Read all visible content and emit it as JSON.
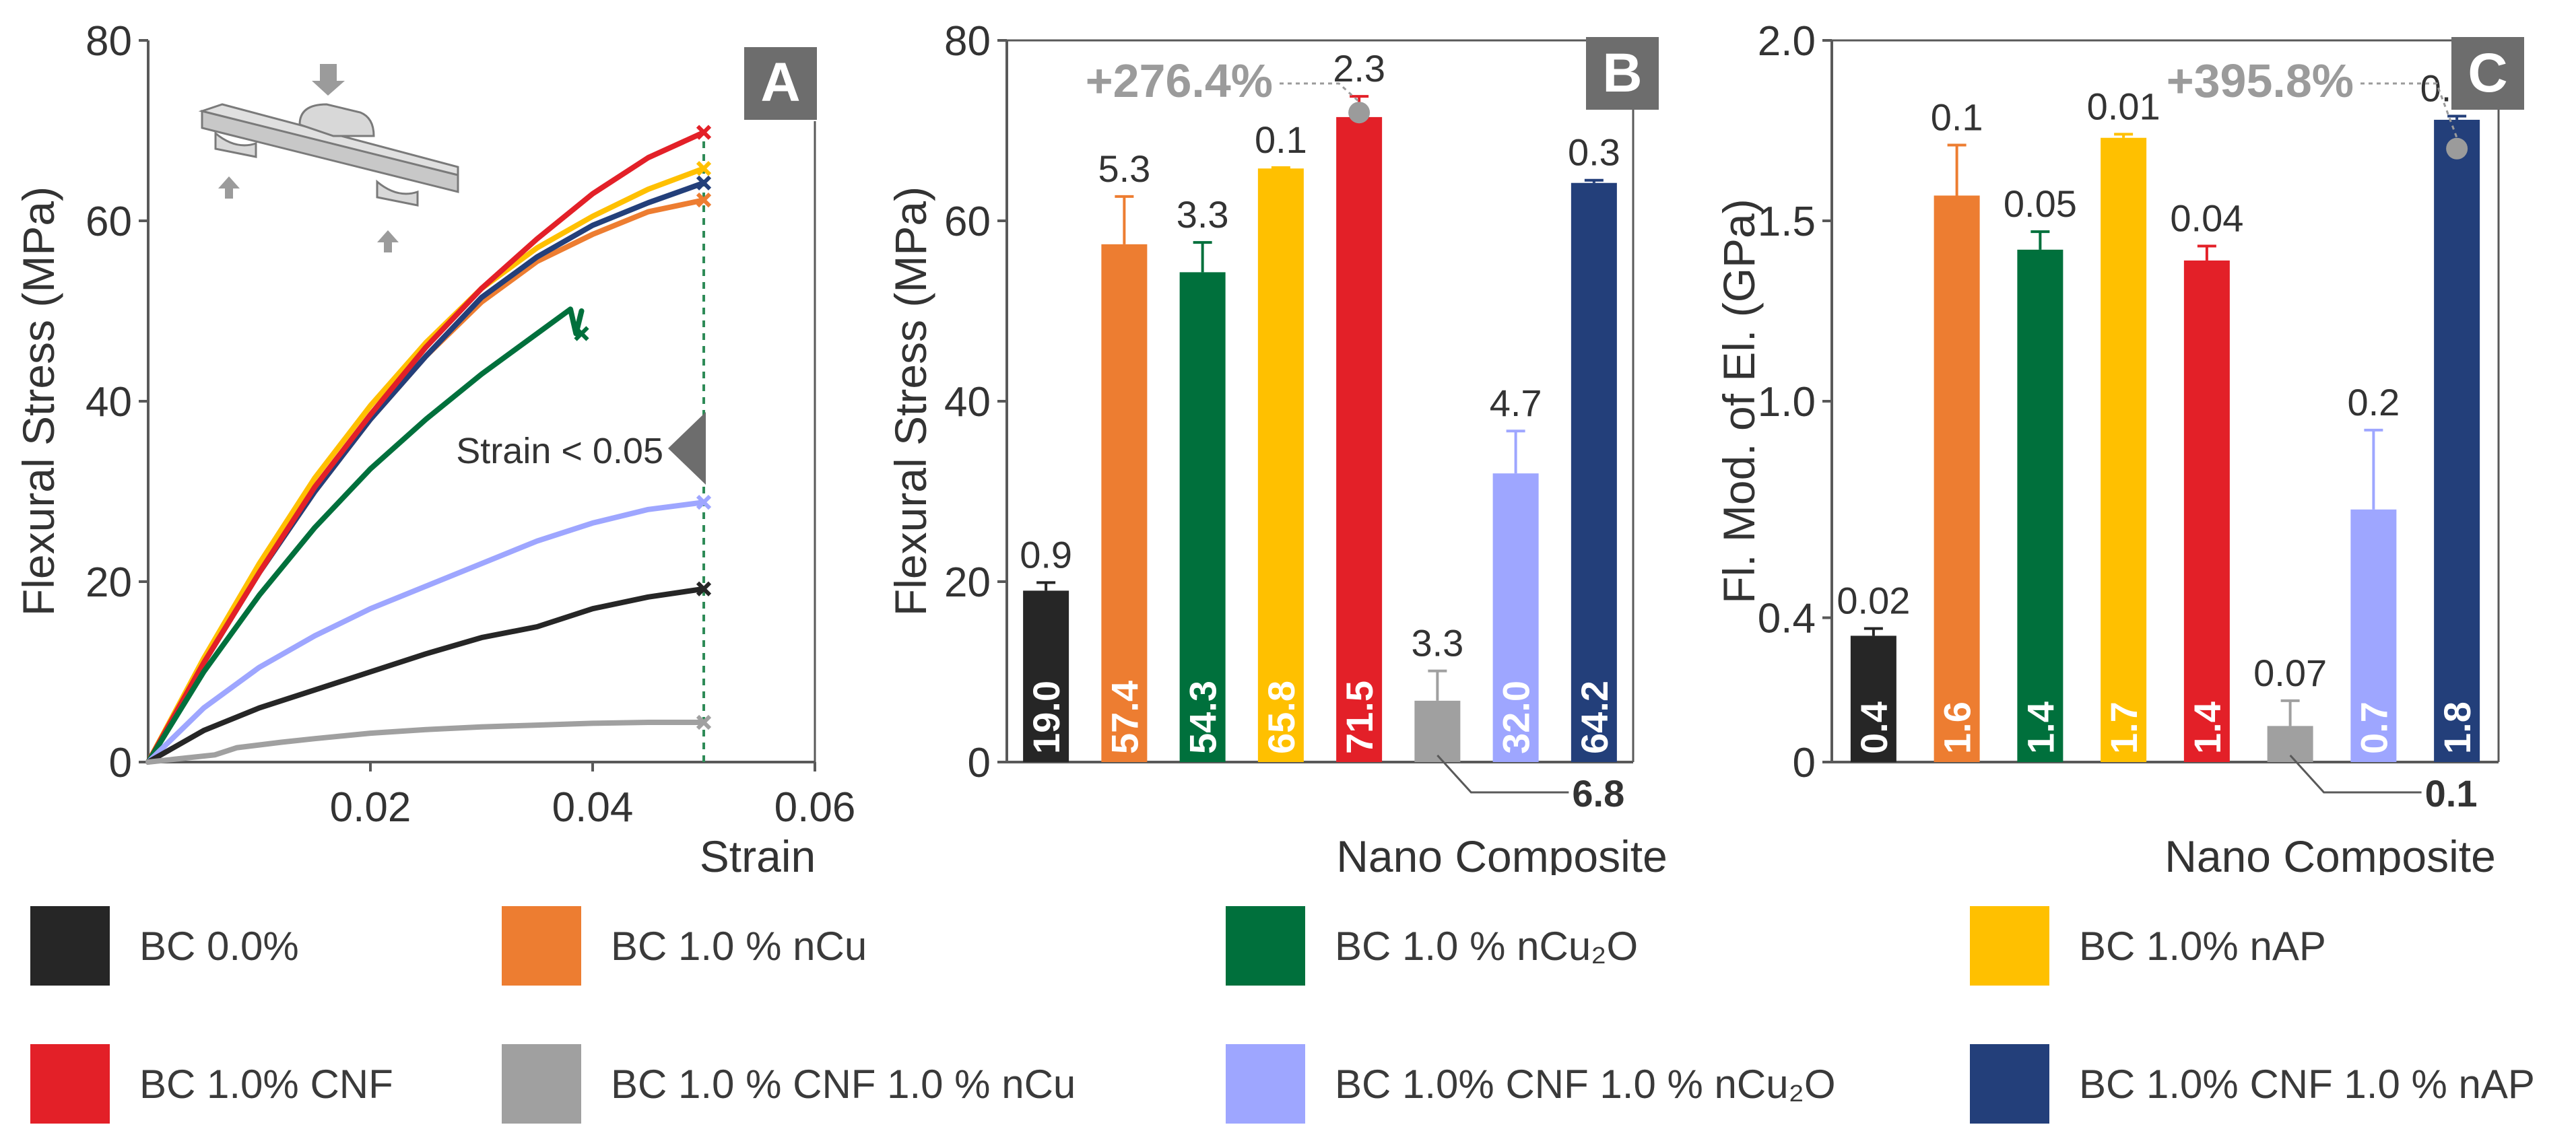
{
  "colors": {
    "BC00": "#262626",
    "nCu": "#ed7d31",
    "nCu2O": "#00703c",
    "nAP": "#ffc000",
    "CNF": "#e32028",
    "CNFnCu": "#a0a0a0",
    "CNFnCu2O": "#9ea6ff",
    "CNFnAP": "#233f7a",
    "axis": "#595959",
    "annot_gray": "#9b9b9b",
    "panel_label_bg": "#6d6d6d",
    "dashed_green": "#2e8b57"
  },
  "legend": [
    {
      "key": "BC00",
      "label": "BC 0.0%"
    },
    {
      "key": "nCu",
      "label": "BC 1.0 % nCu"
    },
    {
      "key": "nCu2O",
      "label": "BC 1.0 % nCu₂O"
    },
    {
      "key": "nAP",
      "label": "BC 1.0% nAP"
    },
    {
      "key": "CNF",
      "label": "BC 1.0% CNF"
    },
    {
      "key": "CNFnCu",
      "label": "BC 1.0 % CNF 1.0 % nCu"
    },
    {
      "key": "CNFnCu2O",
      "label": "BC 1.0% CNF 1.0 % nCu₂O"
    },
    {
      "key": "CNFnAP",
      "label": "BC 1.0% CNF 1.0 % nAP"
    }
  ],
  "chart_data": [
    {
      "type": "line",
      "panel_label": "A",
      "xlabel": "Strain",
      "ylabel": "Flexural Stress (MPa)",
      "xlim": [
        0,
        0.06
      ],
      "ylim": [
        0,
        80
      ],
      "xticks": [
        0.02,
        0.04,
        0.06
      ],
      "xtick_labels": [
        "0.02",
        "0.04",
        "0.06"
      ],
      "yticks": [
        0,
        20,
        40,
        60,
        80
      ],
      "ytick_labels": [
        "0",
        "20",
        "40",
        "60",
        "80"
      ],
      "annotation": "Strain < 0.05",
      "dashed_x": 0.05,
      "series": [
        {
          "key": "nCu",
          "x": [
            0,
            0.005,
            0.01,
            0.015,
            0.02,
            0.025,
            0.03,
            0.035,
            0.04,
            0.045,
            0.05
          ],
          "y": [
            0,
            11,
            21,
            30,
            38,
            45,
            51,
            55.5,
            58.5,
            61,
            62.3
          ],
          "end": "x"
        },
        {
          "key": "CNFnAP",
          "x": [
            0,
            0.005,
            0.01,
            0.015,
            0.02,
            0.025,
            0.03,
            0.035,
            0.04,
            0.045,
            0.05
          ],
          "y": [
            0,
            11,
            21,
            30,
            38,
            45,
            51.5,
            56,
            59.5,
            62,
            64.2
          ],
          "end": "x"
        },
        {
          "key": "nAP",
          "x": [
            0,
            0.005,
            0.01,
            0.015,
            0.02,
            0.025,
            0.03,
            0.035,
            0.04,
            0.045,
            0.05
          ],
          "y": [
            0,
            11.5,
            22,
            31.5,
            39.5,
            46.5,
            52.5,
            57,
            60.5,
            63.5,
            65.8
          ],
          "end": "x"
        },
        {
          "key": "CNF",
          "x": [
            0,
            0.005,
            0.01,
            0.015,
            0.02,
            0.025,
            0.03,
            0.035,
            0.04,
            0.045,
            0.05
          ],
          "y": [
            0,
            11,
            21,
            30.5,
            38.5,
            46,
            52.5,
            58,
            63,
            67,
            69.8
          ],
          "end": "x"
        },
        {
          "key": "nCu2O",
          "x": [
            0,
            0.005,
            0.01,
            0.015,
            0.02,
            0.025,
            0.03,
            0.035,
            0.038,
            0.0385,
            0.039
          ],
          "y": [
            0,
            10,
            18.5,
            26,
            32.5,
            38,
            43,
            47.5,
            50.2,
            47.5,
            50
          ],
          "end": "x",
          "end_x": 0.039,
          "end_y": 47.5
        },
        {
          "key": "CNFnCu2O",
          "x": [
            0,
            0.005,
            0.01,
            0.015,
            0.02,
            0.025,
            0.03,
            0.035,
            0.04,
            0.045,
            0.05
          ],
          "y": [
            0,
            6,
            10.5,
            14,
            17,
            19.5,
            22,
            24.5,
            26.5,
            28,
            28.8
          ],
          "end": "x"
        },
        {
          "key": "BC00",
          "x": [
            0,
            0.005,
            0.01,
            0.015,
            0.02,
            0.025,
            0.03,
            0.035,
            0.04,
            0.045,
            0.05
          ],
          "y": [
            0,
            3.5,
            6,
            8,
            10,
            12,
            13.8,
            15,
            17,
            18.3,
            19.2
          ],
          "end": "x"
        },
        {
          "key": "CNFnCu",
          "x": [
            0,
            0.006,
            0.008,
            0.012,
            0.015,
            0.02,
            0.025,
            0.03,
            0.035,
            0.04,
            0.045,
            0.05
          ],
          "y": [
            0,
            0.8,
            1.6,
            2.2,
            2.6,
            3.2,
            3.6,
            3.9,
            4.1,
            4.3,
            4.4,
            4.4
          ],
          "end": "x"
        }
      ]
    },
    {
      "type": "bar",
      "panel_label": "B",
      "xlabel": "Nano Composite",
      "ylabel": "Flexural Stress (MPa)",
      "ylim": [
        0,
        80
      ],
      "yticks": [
        0,
        20,
        40,
        60,
        80
      ],
      "ytick_labels": [
        "0",
        "20",
        "40",
        "60",
        "80"
      ],
      "categories": [
        "BC00",
        "nCu",
        "nCu2O",
        "nAP",
        "CNF",
        "CNFnCu",
        "CNFnCu2O",
        "CNFnAP"
      ],
      "values": [
        19.0,
        57.4,
        54.3,
        65.8,
        71.5,
        6.8,
        32.0,
        64.2
      ],
      "value_labels": [
        "19.0",
        "57.4",
        "54.3",
        "65.8",
        "71.5",
        "",
        "32.0",
        "64.2"
      ],
      "errors": [
        0.9,
        5.3,
        3.3,
        0.1,
        2.3,
        3.3,
        4.7,
        0.3
      ],
      "error_labels": [
        "0.9",
        "5.3",
        "3.3",
        "0.1",
        "2.3",
        "3.3",
        "4.7",
        "0.3"
      ],
      "callout_label": "6.8",
      "increase_label": "+276.4%"
    },
    {
      "type": "bar",
      "panel_label": "C",
      "xlabel": "Nano Composite",
      "ylabel": "Fl. Mod. of El. (GPa)",
      "ylim": [
        0,
        2.0
      ],
      "yticks": [
        0,
        0.4,
        1.0,
        1.5,
        2.0
      ],
      "ytick_labels": [
        "0",
        "0.4",
        "1.0",
        "1.5",
        "2.0"
      ],
      "categories": [
        "BC00",
        "nCu",
        "nCu2O",
        "nAP",
        "CNF",
        "CNFnCu",
        "CNFnCu2O",
        "CNFnAP"
      ],
      "values": [
        0.35,
        1.57,
        1.42,
        1.73,
        1.39,
        0.1,
        0.7,
        1.78
      ],
      "value_labels": [
        "0.4",
        "1.6",
        "1.4",
        "1.7",
        "1.4",
        "",
        "0.7",
        "1.8"
      ],
      "errors": [
        0.02,
        0.14,
        0.05,
        0.01,
        0.04,
        0.07,
        0.22,
        0.01
      ],
      "error_labels": [
        "0.02",
        "0.1",
        "0.05",
        "0.01",
        "0.04",
        "0.07",
        "0.2",
        "0.01"
      ],
      "callout_label": "0.1",
      "increase_label": "+395.8%"
    }
  ]
}
